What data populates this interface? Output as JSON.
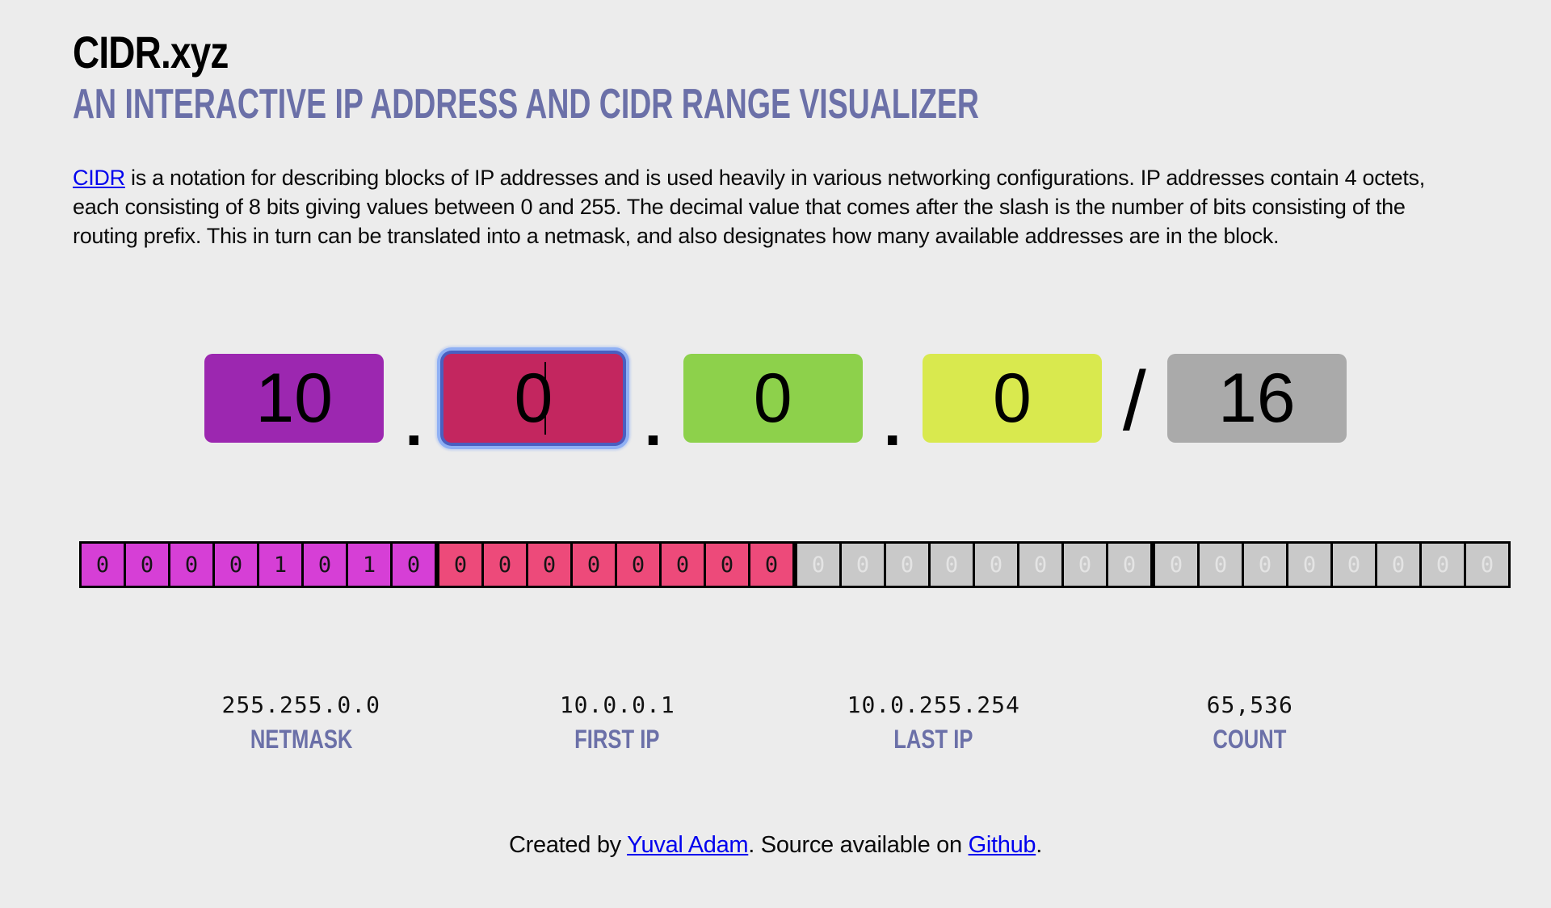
{
  "header": {
    "title": "CIDR.xyz",
    "subtitle": "AN INTERACTIVE IP ADDRESS AND CIDR RANGE VISUALIZER"
  },
  "intro": {
    "link_label": "CIDR",
    "body": " is a notation for describing blocks of IP addresses and is used heavily in various networking configurations. IP addresses contain 4 octets, each consisting of 8 bits giving values between 0 and 255. The decimal value that comes after the slash is the number of bits consisting of the routing prefix. This in turn can be translated into a netmask, and also designates how many available addresses are in the block."
  },
  "ip_input": {
    "octets": [
      {
        "value": "10"
      },
      {
        "value": "0"
      },
      {
        "value": "0"
      },
      {
        "value": "0"
      }
    ],
    "prefix": {
      "value": "16"
    },
    "dot": ".",
    "slash": "/"
  },
  "bits": {
    "groups": [
      {
        "octet": 1,
        "state": "network",
        "values": [
          "0",
          "0",
          "0",
          "0",
          "1",
          "0",
          "1",
          "0"
        ]
      },
      {
        "octet": 2,
        "state": "network",
        "values": [
          "0",
          "0",
          "0",
          "0",
          "0",
          "0",
          "0",
          "0"
        ]
      },
      {
        "octet": 3,
        "state": "host",
        "values": [
          "0",
          "0",
          "0",
          "0",
          "0",
          "0",
          "0",
          "0"
        ]
      },
      {
        "octet": 4,
        "state": "host",
        "values": [
          "0",
          "0",
          "0",
          "0",
          "0",
          "0",
          "0",
          "0"
        ]
      }
    ]
  },
  "stats": {
    "netmask": {
      "value": "255.255.0.0",
      "label": "NETMASK"
    },
    "first_ip": {
      "value": "10.0.0.1",
      "label": "FIRST IP"
    },
    "last_ip": {
      "value": "10.0.255.254",
      "label": "LAST IP"
    },
    "count": {
      "value": "65,536",
      "label": "COUNT"
    }
  },
  "footer": {
    "created_by": "Created by ",
    "author_link": "Yuval Adam",
    "middle": ". Source available on ",
    "github_link": "Github",
    "period": "."
  },
  "colors": {
    "page-bg": "#ececec",
    "accent": "#6b70a8",
    "link": "#0000ee",
    "octet1": "#9c27b0",
    "octet2": "#c3265f",
    "octet3": "#8dd14b",
    "octet4": "#d9e94e",
    "prefix-box": "#aaaaaa",
    "bits1": "#d63fd6",
    "bits2": "#ed4a7a",
    "bits-host-bg": "#c9c9c9",
    "bits-host-fg": "#e4e4e4",
    "focus-border": "#4a5fc0",
    "focus-ring": "#8fb0f4"
  }
}
